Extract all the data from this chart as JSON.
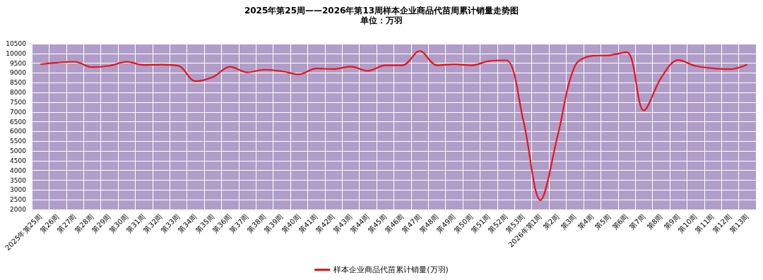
{
  "chart_data": {
    "type": "line",
    "title": "2025年第25周——2026年第13周样本企业商品代苗周累计销量走势图",
    "subtitle": "单位：万羽",
    "categories": [
      "2025年第25周",
      "第26周",
      "第27周",
      "第28周",
      "第29周",
      "第30周",
      "第31周",
      "第32周",
      "第33周",
      "第34周",
      "第35周",
      "第36周",
      "第37周",
      "第38周",
      "第39周",
      "第40周",
      "第41周",
      "第42周",
      "第43周",
      "第44周",
      "第45周",
      "第46周",
      "第47周",
      "第48周",
      "第49周",
      "第50周",
      "第51周",
      "第52周",
      "第53周",
      "2026年第1周",
      "第2周",
      "第3周",
      "第4周",
      "第5周",
      "第6周",
      "第7周",
      "第8周",
      "第9周",
      "第10周",
      "第11周",
      "第12周",
      "第13周"
    ],
    "series": [
      {
        "name": "样本企业商品代苗累计销量(万羽)",
        "color": "#e8141c",
        "values": [
          9450,
          9530,
          9570,
          9300,
          9370,
          9570,
          9410,
          9430,
          9370,
          8580,
          8790,
          9320,
          9030,
          9170,
          9090,
          8930,
          9230,
          9200,
          9330,
          9110,
          9390,
          9390,
          10130,
          9390,
          9450,
          9390,
          9610,
          9650,
          6600,
          2480,
          5780,
          9360,
          9880,
          9910,
          10070,
          7080,
          8750,
          9660,
          9360,
          9240,
          9190,
          9430
        ]
      }
    ],
    "ylim": [
      2000,
      10500
    ],
    "yticks": [
      2000,
      2500,
      3000,
      3500,
      4000,
      4500,
      5000,
      5500,
      6000,
      6500,
      7000,
      7500,
      8000,
      8500,
      9000,
      9500,
      10000,
      10500
    ],
    "grid": true,
    "legend": "bottom",
    "marker": "none",
    "line_style": "solid"
  }
}
